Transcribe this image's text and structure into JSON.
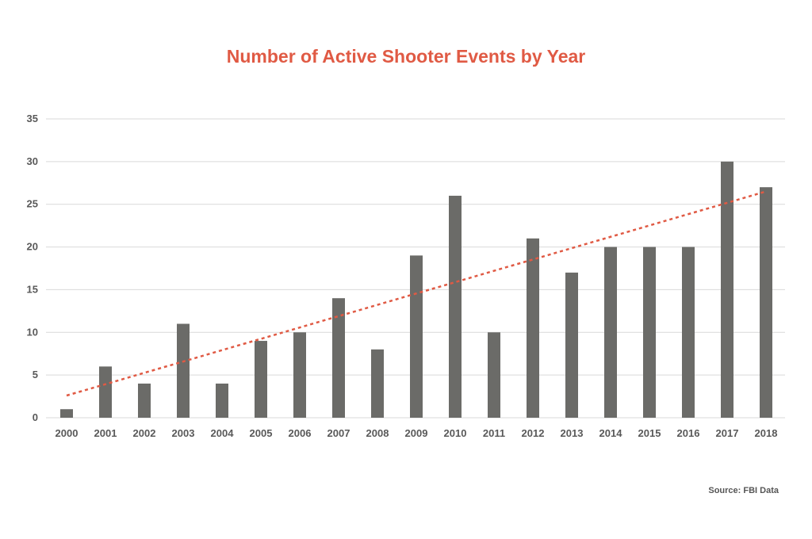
{
  "chart_data": {
    "type": "bar",
    "title": "Number of Active Shooter Events by Year",
    "source": "Source: FBI Data",
    "categories": [
      "2000",
      "2001",
      "2002",
      "2003",
      "2004",
      "2005",
      "2006",
      "2007",
      "2008",
      "2009",
      "2010",
      "2011",
      "2012",
      "2013",
      "2014",
      "2015",
      "2016",
      "2017",
      "2018"
    ],
    "values": [
      1,
      6,
      4,
      11,
      4,
      9,
      10,
      14,
      8,
      19,
      26,
      10,
      21,
      17,
      20,
      20,
      20,
      30,
      27
    ],
    "ylim": [
      0,
      35
    ],
    "yticks": [
      0,
      5,
      10,
      15,
      20,
      25,
      30,
      35
    ],
    "grid": true,
    "trendline": {
      "type": "linear",
      "style": "dotted",
      "start": 2.6,
      "end": 26.5,
      "color": "#e05a44"
    },
    "colors": {
      "bar": "#6b6b68",
      "title": "#e05a44",
      "grid": "#d9d9d9"
    }
  }
}
